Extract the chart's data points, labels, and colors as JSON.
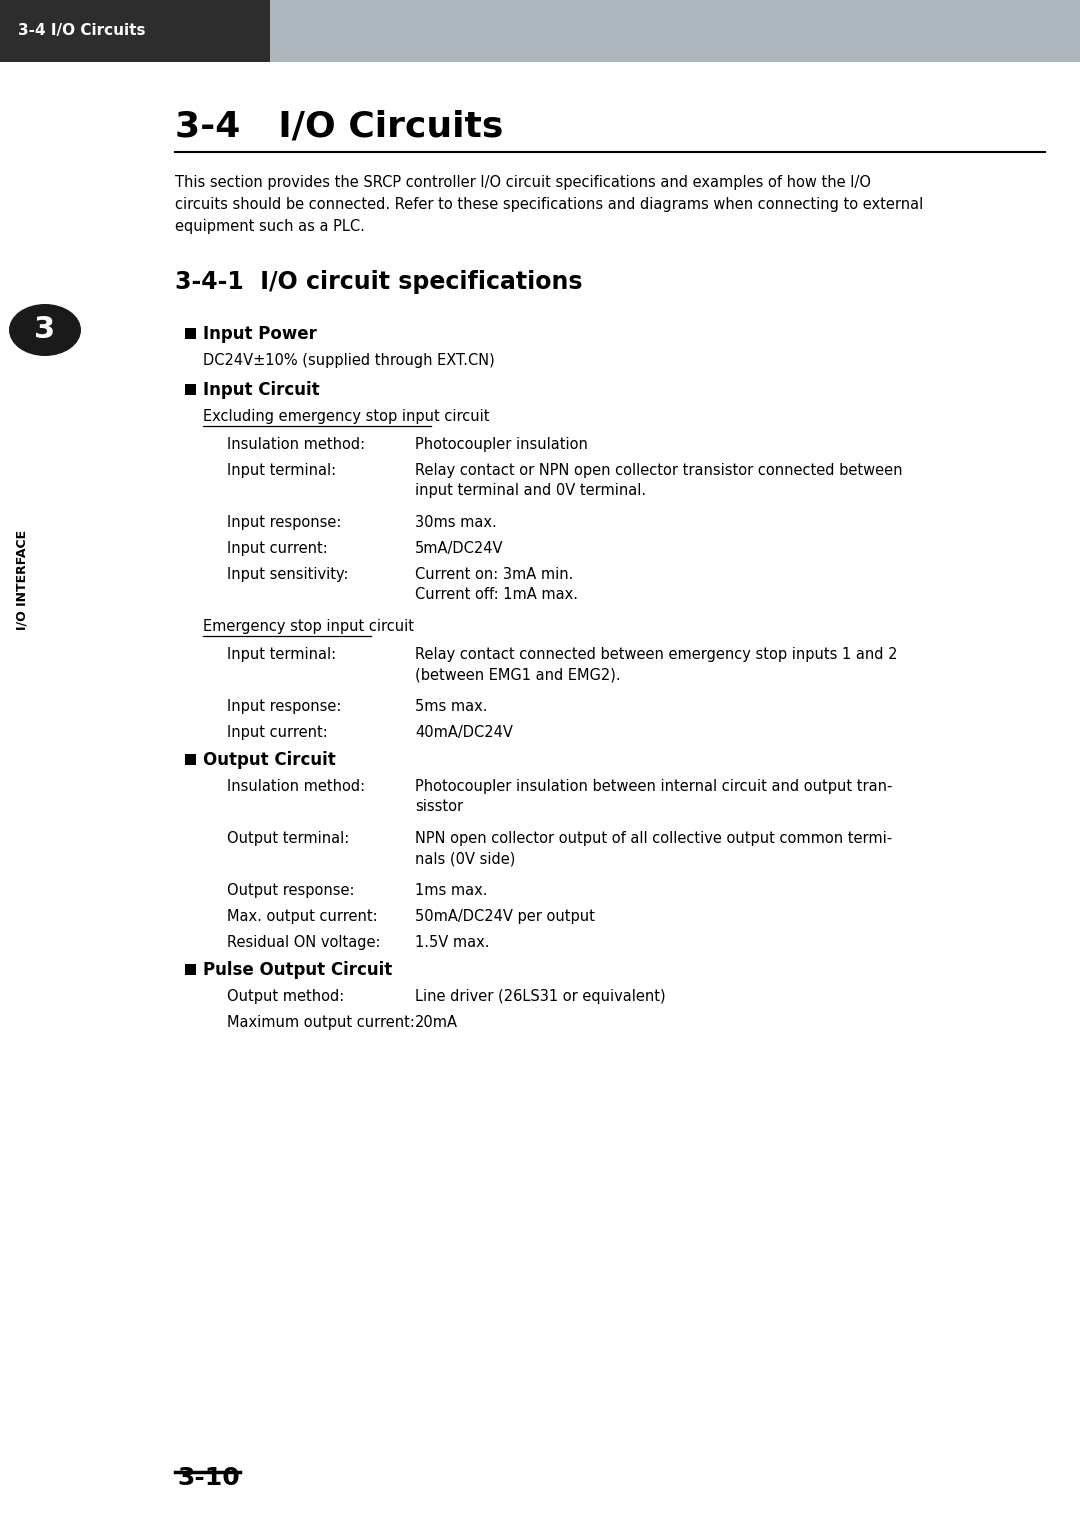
{
  "header_bg_dark": "#2d2d2d",
  "header_bg_light": "#adb5bd",
  "header_text": "3-4 I/O Circuits",
  "header_text_color": "#ffffff",
  "page_bg": "#ffffff",
  "sidebar_bg": "#1a1a1a",
  "sidebar_text": "I/O INTERFACE",
  "sidebar_number": "3",
  "page_number": "3-10",
  "title": "3-4   I/O Circuits",
  "subtitle": "3-4-1  I/O circuit specifications",
  "intro_text": "This section provides the SRCP controller I/O circuit specifications and examples of how the I/O\ncircuits should be connected. Refer to these specifications and diagrams when connecting to external\nequipment such as a PLC.",
  "sections": [
    {
      "type": "bullet_header",
      "text": "Input Power"
    },
    {
      "type": "indent1",
      "text": "DC24V±10% (supplied through EXT.CN)"
    },
    {
      "type": "bullet_header",
      "text": "Input Circuit"
    },
    {
      "type": "subsection_underline",
      "text": "Excluding emergency stop input circuit"
    },
    {
      "type": "table_row",
      "label": "Insulation method:",
      "value": "Photocoupler insulation"
    },
    {
      "type": "table_row_multiline",
      "label": "Input terminal:",
      "value": "Relay contact or NPN open collector transistor connected between\ninput terminal and 0V terminal."
    },
    {
      "type": "table_row",
      "label": "Input response:",
      "value": "30ms max."
    },
    {
      "type": "table_row",
      "label": "Input current:",
      "value": "5mA/DC24V"
    },
    {
      "type": "table_row_multiline",
      "label": "Input sensitivity:",
      "value": "Current on: 3mA min.\nCurrent off: 1mA max."
    },
    {
      "type": "subsection_underline",
      "text": "Emergency stop input circuit"
    },
    {
      "type": "table_row_multiline",
      "label": "Input terminal:",
      "value": "Relay contact connected between emergency stop inputs 1 and 2\n(between EMG1 and EMG2)."
    },
    {
      "type": "table_row",
      "label": "Input response:",
      "value": "5ms max."
    },
    {
      "type": "table_row",
      "label": "Input current:",
      "value": "40mA/DC24V"
    },
    {
      "type": "bullet_header",
      "text": "Output Circuit"
    },
    {
      "type": "table_row_multiline",
      "label": "Insulation method:",
      "value": "Photocoupler insulation between internal circuit and output tran-\nsisstor"
    },
    {
      "type": "table_row_multiline",
      "label": "Output terminal:",
      "value": "NPN open collector output of all collective output common termi-\nnals (0V side)"
    },
    {
      "type": "table_row",
      "label": "Output response:",
      "value": "1ms max."
    },
    {
      "type": "table_row",
      "label": "Max. output current:",
      "value": "50mA/DC24V per output"
    },
    {
      "type": "table_row",
      "label": "Residual ON voltage:",
      "value": "1.5V max."
    },
    {
      "type": "bullet_header",
      "text": "Pulse Output Circuit"
    },
    {
      "type": "table_row",
      "label": "Output method:",
      "value": "Line driver (26LS31 or equivalent)"
    },
    {
      "type": "table_row",
      "label": "Maximum output current:",
      "value": "20mA"
    }
  ]
}
